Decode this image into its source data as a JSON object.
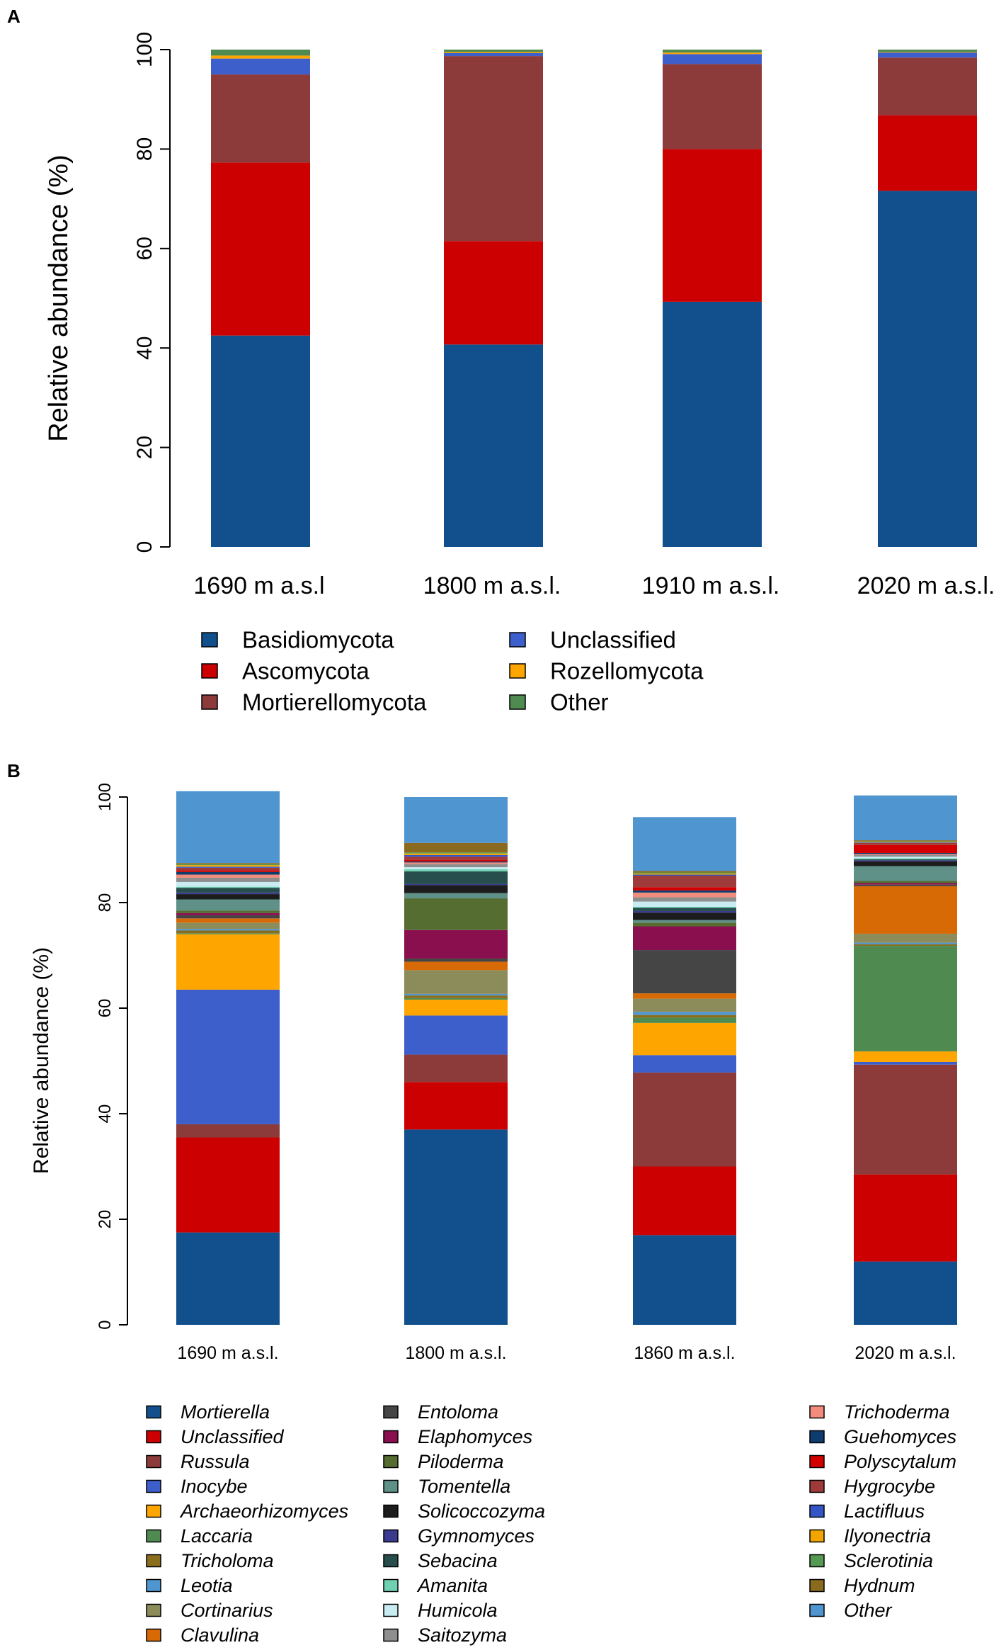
{
  "chart_data": [
    {
      "panel": "A",
      "type": "bar",
      "stacked": true,
      "title": "",
      "xlabel": "",
      "ylabel": "Relative abundance (%)",
      "ylim": [
        0,
        100
      ],
      "yticks": [
        0,
        20,
        40,
        60,
        80,
        100
      ],
      "categories": [
        "1690 m a.s.l",
        "1800 m a.s.l.",
        "1910 m a.s.l.",
        "2020 m a.s.l."
      ],
      "series": [
        {
          "name": "Basidiomycota",
          "color": "#11508c",
          "values": [
            42.5,
            40.7,
            49.3,
            71.6
          ]
        },
        {
          "name": "Ascomycota",
          "color": "#cc0000",
          "values": [
            34.8,
            20.8,
            30.7,
            15.2
          ]
        },
        {
          "name": "Mortierellomycota",
          "color": "#8c3a3a",
          "values": [
            17.7,
            37.2,
            17.1,
            11.6
          ]
        },
        {
          "name": "Unclassified",
          "color": "#3d5fcc",
          "values": [
            3.2,
            0.6,
            2.0,
            1.0
          ]
        },
        {
          "name": "Rozellomycota",
          "color": "#ffa500",
          "values": [
            0.6,
            0.2,
            0.3,
            0.1
          ]
        },
        {
          "name": "Other",
          "color": "#4f8b50",
          "values": [
            1.2,
            0.5,
            0.6,
            0.5
          ]
        }
      ],
      "legend": {
        "placement": "bottom",
        "columns": [
          [
            "Basidiomycota",
            "Ascomycota",
            "Mortierellomycota"
          ],
          [
            "Unclassified",
            "Rozellomycota",
            "Other"
          ]
        ]
      }
    },
    {
      "panel": "B",
      "type": "bar",
      "stacked": true,
      "title": "",
      "xlabel": "",
      "ylabel": "Relative abundance (%)",
      "ylim": [
        0,
        100
      ],
      "yticks": [
        0,
        20,
        40,
        60,
        80,
        100
      ],
      "categories": [
        "1690 m a.s.l.",
        "1800 m a.s.l.",
        "1860 m a.s.l.",
        "2020 m a.s.l."
      ],
      "series": [
        {
          "name": "Mortierella",
          "color": "#11508c",
          "values": [
            17.5,
            37.0,
            17.0,
            12.0
          ]
        },
        {
          "name": "Unclassified",
          "color": "#cc0000",
          "values": [
            18.0,
            9.0,
            13.0,
            16.5
          ]
        },
        {
          "name": "Russula",
          "color": "#8c3a3a",
          "values": [
            2.5,
            5.2,
            17.8,
            20.8
          ]
        },
        {
          "name": "Inocybe",
          "color": "#3d5fcc",
          "values": [
            25.5,
            7.4,
            3.3,
            0.5
          ]
        },
        {
          "name": "Archaeorhizomyces",
          "color": "#ffa500",
          "values": [
            10.5,
            3.0,
            6.1,
            2.0
          ]
        },
        {
          "name": "Laccaria",
          "color": "#4f8b50",
          "values": [
            0.2,
            0.3,
            1.0,
            20.0
          ]
        },
        {
          "name": "Tricholoma",
          "color": "#8a6e1e",
          "values": [
            0.5,
            0.5,
            0.5,
            0.3
          ]
        },
        {
          "name": "Leotia",
          "color": "#4f95cf",
          "values": [
            0.3,
            0.3,
            0.6,
            0.3
          ]
        },
        {
          "name": "Cortinarius",
          "color": "#8c8c5a",
          "values": [
            1.2,
            4.5,
            2.5,
            1.7
          ]
        },
        {
          "name": "Clavulina",
          "color": "#d86a06",
          "values": [
            0.8,
            1.6,
            1.0,
            9.0
          ]
        },
        {
          "name": "Entoloma",
          "color": "#454545",
          "values": [
            0.6,
            0.6,
            8.2,
            0.3
          ]
        },
        {
          "name": "Elaphomyces",
          "color": "#8a0f4f",
          "values": [
            0.4,
            5.4,
            4.5,
            0.3
          ]
        },
        {
          "name": "Piloderma",
          "color": "#566d32",
          "values": [
            0.5,
            6.0,
            0.7,
            0.4
          ]
        },
        {
          "name": "Tomentella",
          "color": "#5f9189",
          "values": [
            2.1,
            1.0,
            0.5,
            2.8
          ]
        },
        {
          "name": "Solicoccozyma",
          "color": "#1c1c1c",
          "values": [
            1.0,
            1.5,
            1.4,
            0.9
          ]
        },
        {
          "name": "Gymnomyces",
          "color": "#3c3a8e",
          "values": [
            0.3,
            0.2,
            0.3,
            0.2
          ]
        },
        {
          "name": "Sebacina",
          "color": "#274d4d",
          "values": [
            0.9,
            2.4,
            0.6,
            0.2
          ]
        },
        {
          "name": "Amanita",
          "color": "#6fd1b1",
          "values": [
            0.2,
            0.4,
            0.2,
            0.2
          ]
        },
        {
          "name": "Humicola",
          "color": "#c8ecf2",
          "values": [
            0.9,
            0.4,
            1.0,
            0.3
          ]
        },
        {
          "name": "Saitozyma",
          "color": "#8e8e8e",
          "values": [
            0.8,
            0.6,
            0.8,
            0.3
          ]
        },
        {
          "name": "Trichoderma",
          "color": "#f28c7c",
          "values": [
            0.6,
            0.3,
            0.9,
            0.2
          ]
        },
        {
          "name": "Guehomyces",
          "color": "#0e3c6e",
          "values": [
            0.5,
            0.2,
            0.4,
            0.2
          ]
        },
        {
          "name": "Polyscytalum",
          "color": "#d40000",
          "values": [
            0.3,
            0.3,
            0.6,
            1.5
          ]
        },
        {
          "name": "Hygrocybe",
          "color": "#9e3a3a",
          "values": [
            0.5,
            0.6,
            2.2,
            0.4
          ]
        },
        {
          "name": "Lactifluus",
          "color": "#3554c5",
          "values": [
            0.2,
            0.3,
            0.2,
            0.1
          ]
        },
        {
          "name": "Ilyonectria",
          "color": "#f2a500",
          "values": [
            0.3,
            0.3,
            0.2,
            0.1
          ]
        },
        {
          "name": "Sclerotinia",
          "color": "#559952",
          "values": [
            0.2,
            0.2,
            0.2,
            0.1
          ]
        },
        {
          "name": "Hydnum",
          "color": "#8a6a1e",
          "values": [
            0.2,
            1.8,
            0.3,
            0.2
          ]
        },
        {
          "name": "Other",
          "color": "#4f95cf",
          "values": [
            13.6,
            8.7,
            10.2,
            8.5
          ]
        }
      ],
      "legend": {
        "placement": "bottom",
        "columns": [
          [
            "Mortierella",
            "Unclassified",
            "Russula",
            "Inocybe",
            "Archaeorhizomyces",
            "Laccaria",
            "Tricholoma",
            "Leotia",
            "Cortinarius",
            "Clavulina"
          ],
          [
            "Entoloma",
            "Elaphomyces",
            "Piloderma",
            "Tomentella",
            "Solicoccozyma",
            "Gymnomyces",
            "Sebacina",
            "Amanita",
            "Humicola",
            "Saitozyma"
          ],
          [
            "Trichoderma",
            "Guehomyces",
            "Polyscytalum",
            "Hygrocybe",
            "Lactifluus",
            "Ilyonectria",
            "Sclerotinia",
            "Hydnum",
            "Other"
          ]
        ]
      }
    }
  ]
}
